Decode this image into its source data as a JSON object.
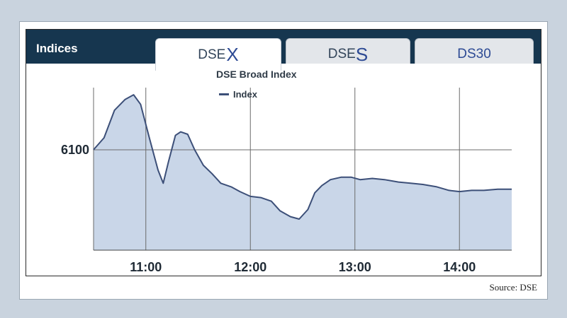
{
  "tabs": {
    "indices_label": "Indices",
    "dsex_prefix": "DSE",
    "dsex_suffix": "X",
    "dses_prefix": "DSE",
    "dses_suffix": "S",
    "ds30_label": "DS30"
  },
  "source": "Source: DSE",
  "colors": {
    "header": "#16364f",
    "line": "#3c4f78",
    "fill": "#c9d6e8",
    "grid": "#6b6b6b"
  },
  "chart_data": {
    "type": "area",
    "title": "DSE Broad Index",
    "legend": [
      "Index"
    ],
    "legend_position": "top-left",
    "grid": true,
    "xlim": [
      "10:30",
      "14:30"
    ],
    "x_ticks": [
      "11:00",
      "12:00",
      "13:00",
      "14:00"
    ],
    "y_ticks": [
      6100
    ],
    "series": [
      {
        "name": "Index",
        "x": [
          "10:30",
          "10:36",
          "10:42",
          "10:48",
          "10:53",
          "10:57",
          "11:02",
          "11:07",
          "11:10",
          "11:13",
          "11:17",
          "11:20",
          "11:24",
          "11:28",
          "11:33",
          "11:38",
          "11:43",
          "11:49",
          "11:54",
          "12:00",
          "12:06",
          "12:12",
          "12:17",
          "12:23",
          "12:28",
          "12:33",
          "12:37",
          "12:41",
          "12:46",
          "12:52",
          "12:58",
          "13:03",
          "13:10",
          "13:17",
          "13:25",
          "13:32",
          "13:39",
          "13:47",
          "13:54",
          "14:00",
          "14:07",
          "14:14",
          "14:22",
          "14:30"
        ],
        "values": [
          6100,
          6110,
          6133,
          6142,
          6146,
          6138,
          6110,
          6083,
          6072,
          6090,
          6112,
          6115,
          6113,
          6100,
          6087,
          6080,
          6072,
          6069,
          6065,
          6061,
          6060,
          6057,
          6049,
          6044,
          6042,
          6050,
          6064,
          6070,
          6075,
          6077,
          6077,
          6075,
          6076,
          6075,
          6073,
          6072,
          6071,
          6069,
          6066,
          6065,
          6066,
          6066,
          6067,
          6067
        ]
      }
    ]
  }
}
